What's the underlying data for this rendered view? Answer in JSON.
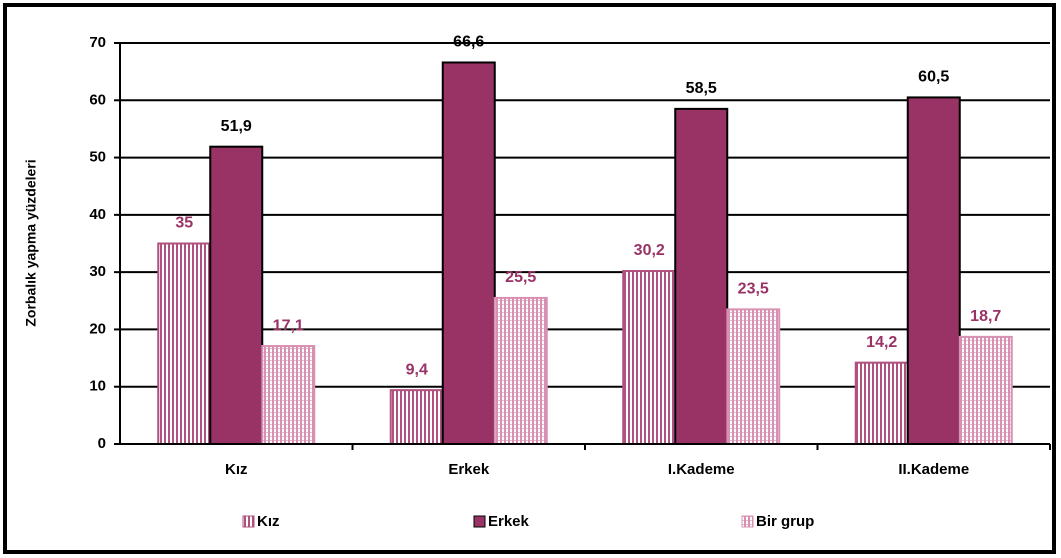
{
  "chart_data": {
    "type": "bar",
    "y_label": "Zorbalık yapma yüzdeleri",
    "categories": [
      "Kız",
      "Erkek",
      "I.Kademe",
      "II.Kademe"
    ],
    "series": [
      {
        "name": "Kız",
        "color": "#b0507f",
        "values": [
          35,
          9.4,
          30.2,
          14.2
        ],
        "value_labels": [
          "35",
          "9,4",
          "30,2",
          "14,2"
        ]
      },
      {
        "name": "Erkek",
        "color": "#993366",
        "values": [
          51.9,
          66.6,
          58.5,
          60.5
        ],
        "value_labels": [
          "51,9",
          "66,6",
          "58,5",
          "60,5"
        ]
      },
      {
        "name": "Bir grup",
        "color": "#d88fb2",
        "values": [
          17.1,
          25.5,
          23.5,
          18.7
        ],
        "value_labels": [
          "17,1",
          "25,5",
          "23,5",
          "18,7"
        ]
      }
    ],
    "ylim": [
      0,
      70
    ],
    "yticks": [
      0,
      10,
      20,
      30,
      40,
      50,
      60,
      70
    ],
    "grid": true
  }
}
